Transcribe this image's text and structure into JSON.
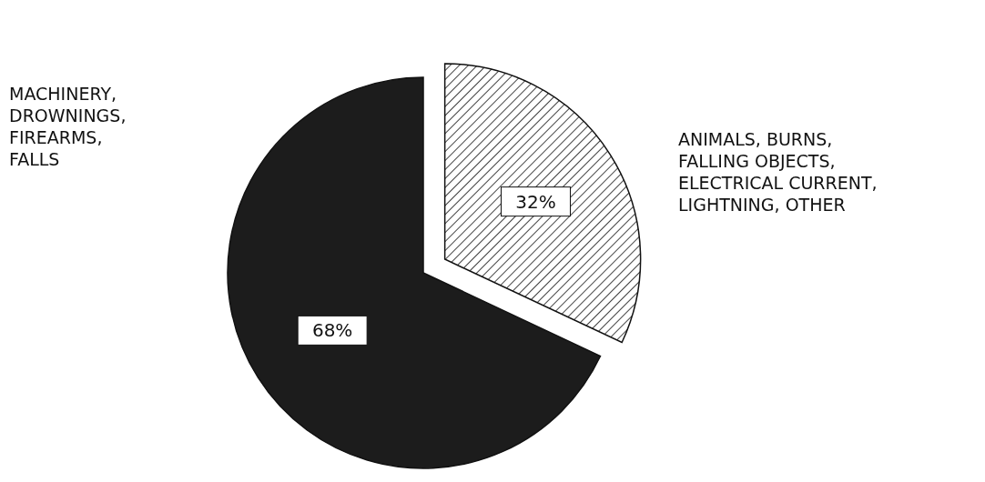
{
  "chart_data": {
    "type": "pie",
    "categories": [
      "MACHINERY, DROWNINGS, FIREARMS, FALLS",
      "ANIMALS, BURNS, FALLING OBJECTS, ELECTRICAL CURRENT, LIGHTNING, OTHER"
    ],
    "values": [
      68,
      32
    ],
    "value_labels": [
      "68%",
      "32%"
    ],
    "colors": [
      "#1c1c1c",
      "#111111"
    ]
  }
}
